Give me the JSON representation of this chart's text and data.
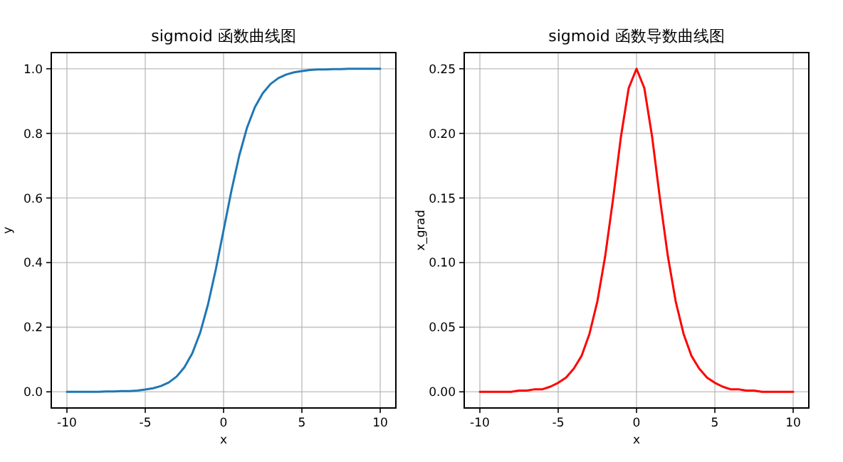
{
  "chart_data": [
    {
      "type": "line",
      "title": "sigmoid 函数曲线图",
      "xlabel": "x",
      "ylabel": "y",
      "grid": true,
      "marker": "none",
      "line_style": "solid",
      "xlim": [
        -11,
        11
      ],
      "xticks": [
        -10,
        -5,
        0,
        5,
        10
      ],
      "ylim": [
        -0.05,
        1.05
      ],
      "yticks": [
        {
          "value": 0,
          "label": "0.0"
        },
        {
          "value": 0.2,
          "label": "0.2"
        },
        {
          "value": 0.4,
          "label": "0.4"
        },
        {
          "value": 0.6,
          "label": "0.6"
        },
        {
          "value": 0.8,
          "label": "0.8"
        },
        {
          "value": 1,
          "label": "1.0"
        }
      ],
      "x": [
        -10,
        -9.5,
        -9,
        -8.5,
        -8,
        -7.5,
        -7,
        -6.5,
        -6,
        -5.5,
        -5,
        -4.5,
        -4,
        -3.5,
        -3,
        -2.5,
        -2,
        -1.5,
        -1,
        -0.5,
        0,
        0.5,
        1,
        1.5,
        2,
        2.5,
        3,
        3.5,
        4,
        4.5,
        5,
        5.5,
        6,
        6.5,
        7,
        7.5,
        8,
        8.5,
        9,
        9.5,
        10
      ],
      "series": [
        {
          "color": "#1f77b4",
          "values": [
            0,
            0,
            0,
            0,
            0,
            0.001,
            0.001,
            0.002,
            0.002,
            0.004,
            0.007,
            0.011,
            0.018,
            0.029,
            0.047,
            0.076,
            0.119,
            0.182,
            0.269,
            0.378,
            0.5,
            0.622,
            0.731,
            0.818,
            0.881,
            0.924,
            0.953,
            0.971,
            0.982,
            0.989,
            0.993,
            0.996,
            0.998,
            0.998,
            0.999,
            0.999,
            1,
            1,
            1,
            1,
            1
          ]
        }
      ]
    },
    {
      "type": "line",
      "title": "sigmoid 函数导数曲线图",
      "xlabel": "x",
      "ylabel": "x_grad",
      "grid": true,
      "marker": "none",
      "line_style": "solid",
      "xlim": [
        -11,
        11
      ],
      "xticks": [
        -10,
        -5,
        0,
        5,
        10
      ],
      "ylim": [
        -0.0125,
        0.2625
      ],
      "yticks": [
        {
          "value": 0,
          "label": "0.00"
        },
        {
          "value": 0.05,
          "label": "0.05"
        },
        {
          "value": 0.1,
          "label": "0.10"
        },
        {
          "value": 0.15,
          "label": "0.15"
        },
        {
          "value": 0.2,
          "label": "0.20"
        },
        {
          "value": 0.25,
          "label": "0.25"
        }
      ],
      "x": [
        -10,
        -9.5,
        -9,
        -8.5,
        -8,
        -7.5,
        -7,
        -6.5,
        -6,
        -5.5,
        -5,
        -4.5,
        -4,
        -3.5,
        -3,
        -2.5,
        -2,
        -1.5,
        -1,
        -0.5,
        0,
        0.5,
        1,
        1.5,
        2,
        2.5,
        3,
        3.5,
        4,
        4.5,
        5,
        5.5,
        6,
        6.5,
        7,
        7.5,
        8,
        8.5,
        9,
        9.5,
        10
      ],
      "series": [
        {
          "color": "#ff0000",
          "values": [
            0,
            0,
            0,
            0,
            0,
            0.001,
            0.001,
            0.002,
            0.002,
            0.004,
            0.007,
            0.011,
            0.018,
            0.028,
            0.045,
            0.07,
            0.105,
            0.149,
            0.197,
            0.235,
            0.25,
            0.235,
            0.197,
            0.149,
            0.105,
            0.07,
            0.045,
            0.028,
            0.018,
            0.011,
            0.007,
            0.004,
            0.002,
            0.002,
            0.001,
            0.001,
            0,
            0,
            0,
            0,
            0
          ]
        }
      ]
    }
  ]
}
